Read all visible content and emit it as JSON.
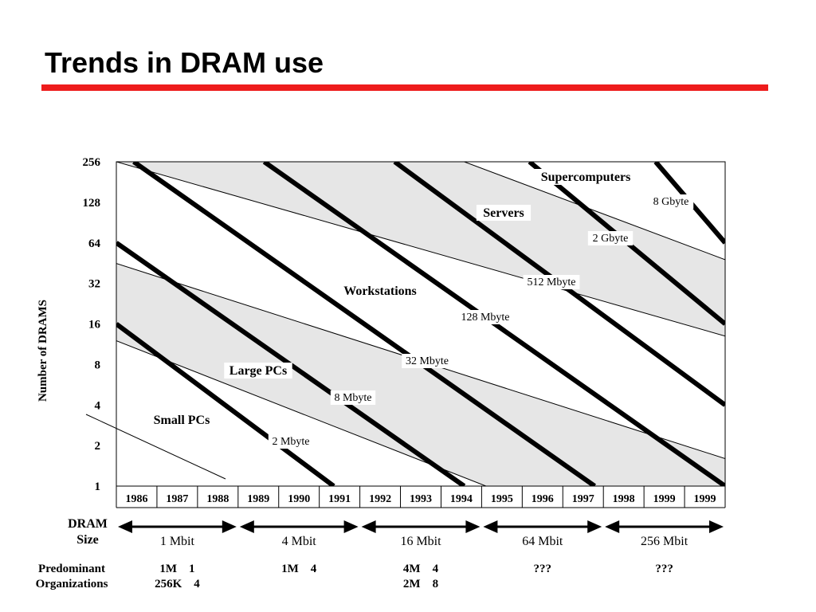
{
  "slide": {
    "title": "Trends in DRAM use"
  },
  "colors": {
    "accent": "#ee1c1c",
    "band": "#e6e6e6",
    "ink": "#000000"
  },
  "chart_data": {
    "type": "line",
    "ylabel": "Number of DRAMS",
    "y_scale": "log2",
    "ylim": [
      1,
      256
    ],
    "y_ticks": [
      "256",
      "128",
      "64",
      "32",
      "16",
      "8",
      "4",
      "2",
      "1"
    ],
    "x_ticks": [
      "1986",
      "1987",
      "1988",
      "1989",
      "1990",
      "1991",
      "1992",
      "1993",
      "1994",
      "1995",
      "1996",
      "1997",
      "1998",
      "1999",
      "1999"
    ],
    "grid": false,
    "memory_lines": [
      {
        "label": "2 Mbyte",
        "from": [
          1986,
          16
        ],
        "to": [
          1991,
          1
        ]
      },
      {
        "label": "8 Mbyte",
        "from": [
          1986,
          64
        ],
        "to": [
          1994,
          1
        ]
      },
      {
        "label": "32 Mbyte",
        "from": [
          1986.4,
          256
        ],
        "to": [
          1997,
          1
        ]
      },
      {
        "label": "128 Mbyte",
        "from": [
          1989.4,
          256
        ],
        "to": [
          2000,
          1
        ]
      },
      {
        "label": "512 Mbyte",
        "from": [
          1992.4,
          256
        ],
        "to": [
          2000,
          4
        ]
      },
      {
        "label": "2 Gbyte",
        "from": [
          1995.5,
          256
        ],
        "to": [
          2000,
          16
        ]
      },
      {
        "label": "8 Gbyte",
        "from": [
          1998.4,
          256
        ],
        "to": [
          2000,
          64
        ]
      }
    ],
    "bands": [
      {
        "label": "Large PCs",
        "upper": [
          [
            1986,
            45
          ],
          [
            2000,
            1.6
          ]
        ],
        "lower": [
          [
            1986,
            12
          ],
          [
            1994.5,
            1
          ]
        ]
      },
      {
        "label": "Workstations",
        "upper": [
          [
            1986,
            256
          ],
          [
            2000,
            13
          ]
        ],
        "lower": [
          [
            1986,
            45
          ],
          [
            2000,
            1.6
          ]
        ]
      },
      {
        "label": "Servers",
        "upper": [
          [
            1994,
            256
          ],
          [
            2000,
            48
          ]
        ],
        "lower": [
          [
            1986,
            256
          ],
          [
            2000,
            13
          ]
        ]
      },
      {
        "label": "Supercomputers",
        "upper": [
          [
            1994,
            256
          ],
          [
            2000,
            48
          ]
        ],
        "lower": [
          [
            1994,
            256
          ],
          [
            2000,
            48
          ]
        ]
      }
    ],
    "small_pcs_boundary": {
      "from": [
        1985.7,
        3.4
      ],
      "to": [
        1988.7,
        1.1
      ]
    },
    "region_labels": {
      "small_pcs": "Small PCs",
      "large_pcs": "Large PCs",
      "workstations": "Workstations",
      "servers": "Servers",
      "supercomputers": "Supercomputers"
    },
    "dram_size": {
      "row_label_line1": "DRAM",
      "row_label_line2": "Size",
      "generations": [
        {
          "label": "1 Mbit",
          "from_year": "1986",
          "to_year": "1988"
        },
        {
          "label": "4 Mbit",
          "from_year": "1989",
          "to_year": "1991"
        },
        {
          "label": "16 Mbit",
          "from_year": "1992",
          "to_year": "1994"
        },
        {
          "label": "64 Mbit",
          "from_year": "1995",
          "to_year": "1997"
        },
        {
          "label": "256 Mbit",
          "from_year": "1998",
          "to_year": "1999"
        }
      ]
    },
    "organizations": {
      "row_label_line1": "Predominant",
      "row_label_line2": "Organizations",
      "cells": [
        {
          "line1": "1M    1",
          "line2": "256K    4"
        },
        {
          "line1": "1M    4",
          "line2": ""
        },
        {
          "line1": "4M    4",
          "line2": "2M    8"
        },
        {
          "line1": "???",
          "line2": ""
        },
        {
          "line1": "???",
          "line2": ""
        }
      ]
    }
  }
}
